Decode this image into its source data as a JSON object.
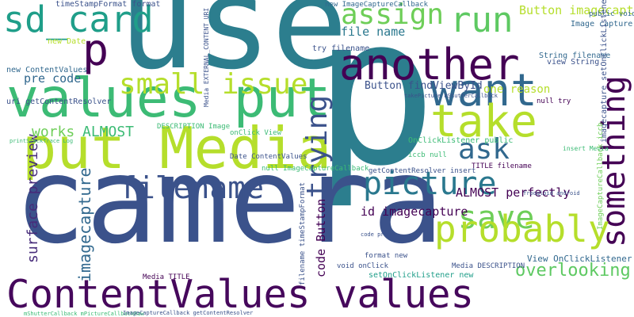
{
  "words": [
    "use",
    "p",
    "camera",
    "ContentValues values",
    "put Media",
    "values put",
    "sd_card",
    "p",
    "another",
    "assign",
    "run",
    "want",
    "take",
    "small issue",
    "trying",
    "something",
    "ask",
    "picture",
    "filename",
    "save",
    "probably",
    "overlooking p",
    "surface preview",
    "imagecapture",
    "works",
    "ALMOST",
    "pre code",
    "code Button",
    "id imagecapture",
    "file name",
    "Button findViewById",
    "one reason",
    "ALMOST perfectly",
    "Button imagecapture",
    "timeStampFormat format",
    "new ContentValues",
    "uri getContentResolver",
    "new Date",
    "Media EXTERNAL_CONTENT_URI",
    "try filename",
    "view String",
    "String filename",
    "Image capture",
    "public void",
    "null try",
    "onClick View",
    "DESCRIPTION Image",
    "OnClickListener public",
    "iccb null",
    "TITLE filename",
    "getContentResolver insert",
    "null ImageCaptureCallback",
    "Date ContentValues",
    "format new",
    "void onClick",
    "setOnClickListener new",
    "View OnClickListener",
    "Media DESCRIPTION",
    "Media TITLE",
    "new ImageCaptureCallback",
    "takePicture mShutterCallback",
    "insert Media",
    "printStackTrace Log",
    "filename timeStampFormat",
    "imagecapture setOnClickListener",
    "ImageCaptureCallback iccb",
    "mShutterCallback mPictureCallbackRaw",
    "ImageCaptureCallback getContentResolver",
    "froogloid android",
    "code pre"
  ]
}
